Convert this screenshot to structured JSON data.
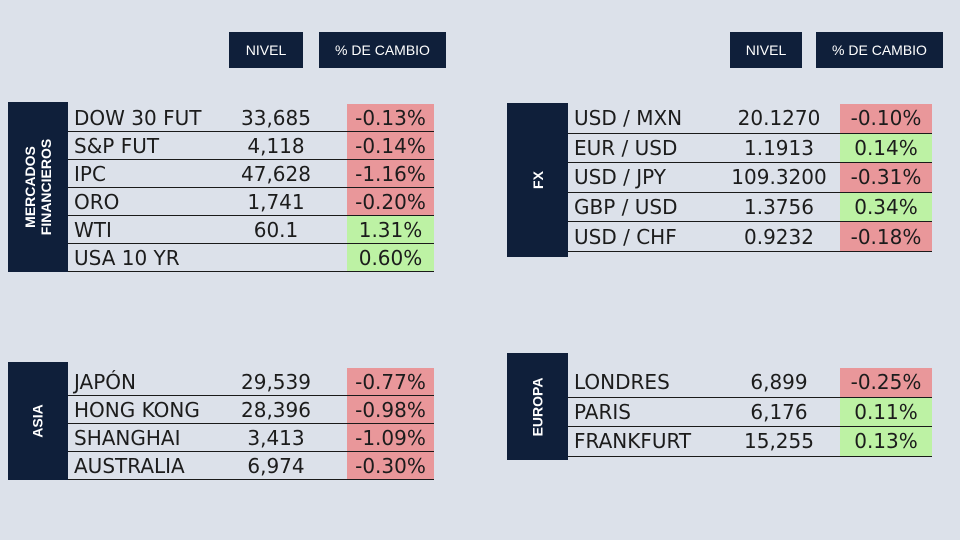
{
  "headers": {
    "left": {
      "nivel": "NIVEL",
      "cambio": "% DE CAMBIO"
    },
    "right": {
      "nivel": "NIVEL",
      "cambio": "% DE CAMBIO"
    }
  },
  "colors": {
    "header_bg": "#0f1f3a",
    "negative": "#e9979a",
    "positive": "#bdf2a4",
    "background": "#dce1ea"
  },
  "sections": {
    "mercados": {
      "title": "MERCADOS\nFINANCIEROS",
      "rows": [
        {
          "name": "DOW 30 FUT",
          "level": "33,685",
          "change": "-0.13%",
          "dir": "neg"
        },
        {
          "name": "S&P FUT",
          "level": "4,118",
          "change": "-0.14%",
          "dir": "neg"
        },
        {
          "name": "IPC",
          "level": "47,628",
          "change": "-1.16%",
          "dir": "neg"
        },
        {
          "name": "ORO",
          "level": "1,741",
          "change": "-0.20%",
          "dir": "neg"
        },
        {
          "name": "WTI",
          "level": "60.1",
          "change": "1.31%",
          "dir": "pos"
        },
        {
          "name": "USA 10 YR",
          "level": "",
          "change": "0.60%",
          "dir": "pos"
        }
      ]
    },
    "fx": {
      "title": "FX",
      "rows": [
        {
          "name": "USD / MXN",
          "level": "20.1270",
          "change": "-0.10%",
          "dir": "neg"
        },
        {
          "name": "EUR / USD",
          "level": "1.1913",
          "change": "0.14%",
          "dir": "pos"
        },
        {
          "name": "USD / JPY",
          "level": "109.3200",
          "change": "-0.31%",
          "dir": "neg"
        },
        {
          "name": "GBP / USD",
          "level": "1.3756",
          "change": "0.34%",
          "dir": "pos"
        },
        {
          "name": "USD / CHF",
          "level": "0.9232",
          "change": "-0.18%",
          "dir": "neg"
        }
      ]
    },
    "asia": {
      "title": "ASIA",
      "rows": [
        {
          "name": "JAPÓN",
          "level": "29,539",
          "change": "-0.77%",
          "dir": "neg"
        },
        {
          "name": "HONG KONG",
          "level": "28,396",
          "change": "-0.98%",
          "dir": "neg"
        },
        {
          "name": "SHANGHAI",
          "level": "3,413",
          "change": "-1.09%",
          "dir": "neg"
        },
        {
          "name": "AUSTRALIA",
          "level": "6,974",
          "change": "-0.30%",
          "dir": "neg"
        }
      ]
    },
    "europa": {
      "title": "EUROPA",
      "rows": [
        {
          "name": "LONDRES",
          "level": "6,899",
          "change": "-0.25%",
          "dir": "neg"
        },
        {
          "name": "PARIS",
          "level": "6,176",
          "change": "0.11%",
          "dir": "pos"
        },
        {
          "name": "FRANKFURT",
          "level": "15,255",
          "change": "0.13%",
          "dir": "pos"
        }
      ]
    }
  }
}
